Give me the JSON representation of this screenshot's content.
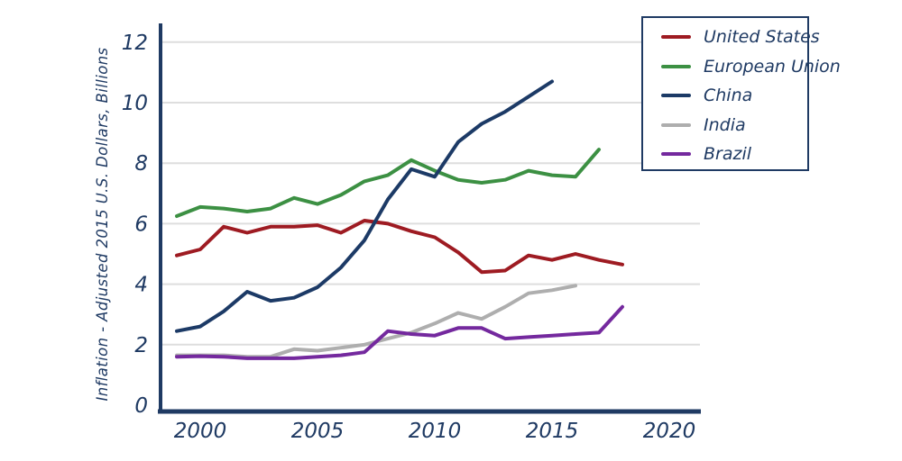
{
  "chart_data": {
    "type": "line",
    "title": "",
    "xlabel": "",
    "ylabel": "Inflation - Adjusted 2015 U.S. Dollars, Billions",
    "x_ticks": [
      2000,
      2005,
      2010,
      2015,
      2020
    ],
    "y_ticks": [
      0,
      2,
      4,
      6,
      8,
      10,
      12
    ],
    "xlim": [
      1998.3,
      2021.3
    ],
    "ylim": [
      0,
      12.6
    ],
    "grid": "horizontal",
    "legend_position": "top-right",
    "colors": {
      "axis": "#1f3a63",
      "gridline": "#dedede",
      "united_states": "#9e1b22",
      "european_union": "#3c9043",
      "china": "#1c3a66",
      "india": "#aeaeae",
      "brazil": "#74299e"
    },
    "series": [
      {
        "name": "United States",
        "color": "#9e1b22",
        "x": [
          1999,
          2000,
          2001,
          2002,
          2003,
          2004,
          2005,
          2006,
          2007,
          2008,
          2009,
          2010,
          2011,
          2012,
          2013,
          2014,
          2015,
          2016,
          2017,
          2018
        ],
        "values": [
          4.95,
          5.15,
          5.9,
          5.7,
          5.9,
          5.9,
          5.95,
          5.7,
          6.1,
          6.0,
          5.75,
          5.55,
          5.05,
          4.4,
          4.45,
          4.95,
          4.8,
          5.0,
          4.8,
          4.65
        ]
      },
      {
        "name": "European Union",
        "color": "#3c9043",
        "x": [
          1999,
          2000,
          2001,
          2002,
          2003,
          2004,
          2005,
          2006,
          2007,
          2008,
          2009,
          2010,
          2011,
          2012,
          2013,
          2014,
          2015,
          2016,
          2017
        ],
        "values": [
          6.25,
          6.55,
          6.5,
          6.4,
          6.5,
          6.85,
          6.65,
          6.95,
          7.4,
          7.6,
          8.1,
          7.75,
          7.45,
          7.35,
          7.45,
          7.75,
          7.6,
          7.55,
          8.45
        ]
      },
      {
        "name": "China",
        "color": "#1c3a66",
        "x": [
          1999,
          2000,
          2001,
          2002,
          2003,
          2004,
          2005,
          2006,
          2007,
          2008,
          2009,
          2010,
          2011,
          2012,
          2013,
          2014,
          2015
        ],
        "values": [
          2.45,
          2.6,
          3.1,
          3.75,
          3.45,
          3.55,
          3.9,
          4.55,
          5.45,
          6.8,
          7.8,
          7.55,
          8.7,
          9.3,
          9.7,
          10.2,
          10.7
        ]
      },
      {
        "name": "India",
        "color": "#aeaeae",
        "x": [
          1999,
          2000,
          2001,
          2002,
          2003,
          2004,
          2005,
          2006,
          2007,
          2008,
          2009,
          2010,
          2011,
          2012,
          2013,
          2014,
          2015,
          2016
        ],
        "values": [
          1.65,
          1.65,
          1.65,
          1.6,
          1.6,
          1.85,
          1.8,
          1.9,
          2.0,
          2.2,
          2.4,
          2.7,
          3.05,
          2.85,
          3.25,
          3.7,
          3.8,
          3.95
        ]
      },
      {
        "name": "Brazil",
        "color": "#74299e",
        "x": [
          1999,
          2000,
          2001,
          2002,
          2003,
          2004,
          2005,
          2006,
          2007,
          2008,
          2009,
          2010,
          2011,
          2012,
          2013,
          2014,
          2015,
          2016,
          2017,
          2018
        ],
        "values": [
          1.6,
          1.62,
          1.6,
          1.55,
          1.55,
          1.55,
          1.6,
          1.65,
          1.75,
          2.45,
          2.35,
          2.3,
          2.55,
          2.55,
          2.2,
          2.25,
          2.3,
          2.35,
          2.4,
          3.25
        ]
      }
    ]
  }
}
